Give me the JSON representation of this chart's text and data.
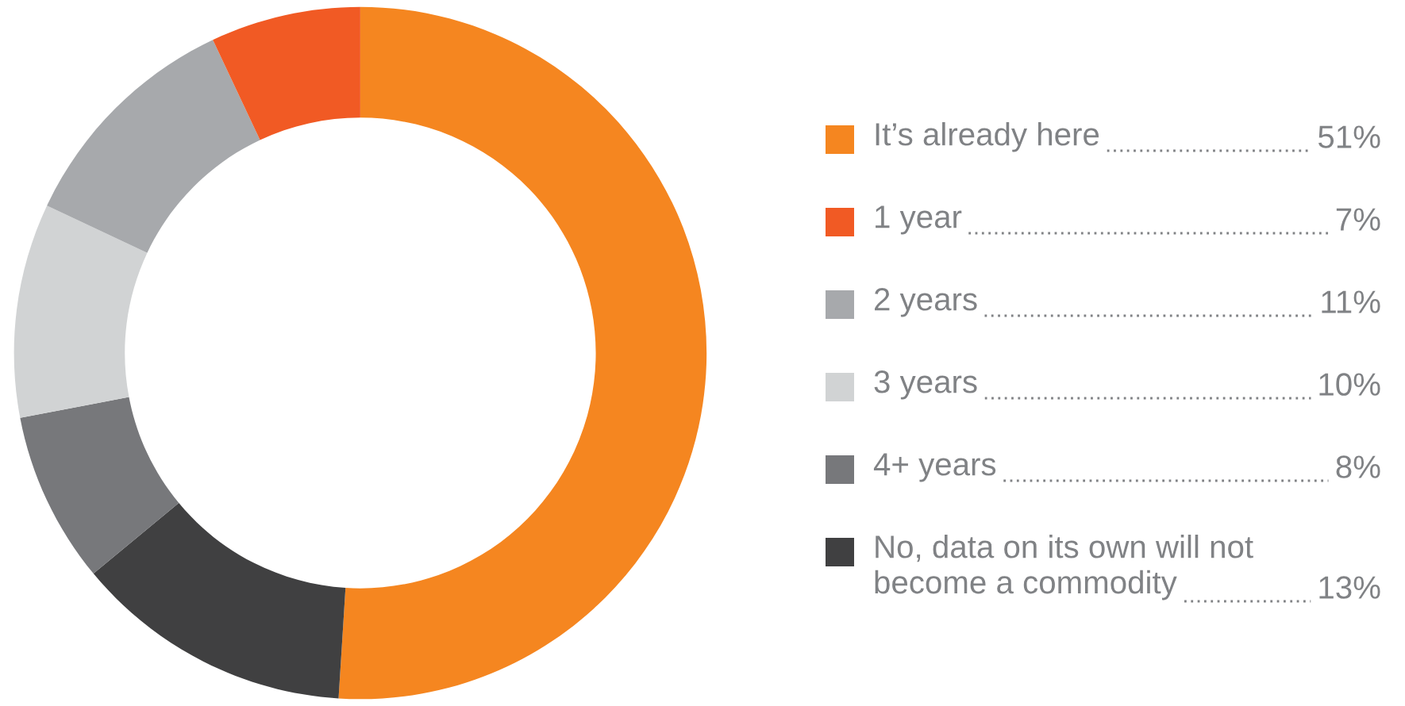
{
  "chart_data": {
    "type": "donut",
    "categories": [
      "It’s already here",
      "1 year",
      "2 years",
      "3 years",
      "4+ years",
      "No, data on its own will not\nbecome a commodity"
    ],
    "values": [
      51,
      7,
      11,
      10,
      8,
      13
    ],
    "value_labels": [
      "51%",
      "7%",
      "11%",
      "10%",
      "8%",
      "13%"
    ],
    "colors": [
      "#f58620",
      "#f15a24",
      "#a7a9ac",
      "#d1d3d4",
      "#77787b",
      "#404041"
    ],
    "legend": "right"
  }
}
